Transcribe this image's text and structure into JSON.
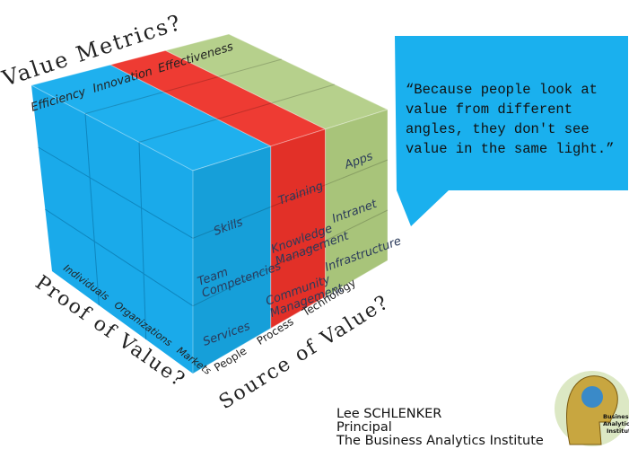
{
  "header": {
    "title": "Value Metrics?",
    "columns": [
      "Efficiency",
      "Innovation",
      "Effectiveness"
    ]
  },
  "cube": {
    "people": [
      "Skills",
      [
        "Team",
        "Competencies"
      ],
      "Services"
    ],
    "process": [
      "Training",
      [
        "Knowledge",
        "Management"
      ],
      [
        "Community",
        "Management"
      ]
    ],
    "technology": [
      "Apps",
      "Intranet",
      "Infrastructure"
    ]
  },
  "proof": {
    "title": "Proof of Value?",
    "levels": [
      "Individuals",
      "Organizations",
      "Markets"
    ]
  },
  "source": {
    "title": "Source of Value?",
    "levels": [
      "People",
      "Process",
      "Technology"
    ]
  },
  "quote": {
    "lines": [
      "“Because people look at",
      "value from different",
      "angles, they don't see",
      "value in the same light.”"
    ]
  },
  "author": {
    "name": "Lee SCHLENKER",
    "role": "Principal",
    "org": "The Business Analytics Institute"
  },
  "logo": {
    "lines": [
      "Business",
      "Analytics",
      "Institute"
    ]
  }
}
